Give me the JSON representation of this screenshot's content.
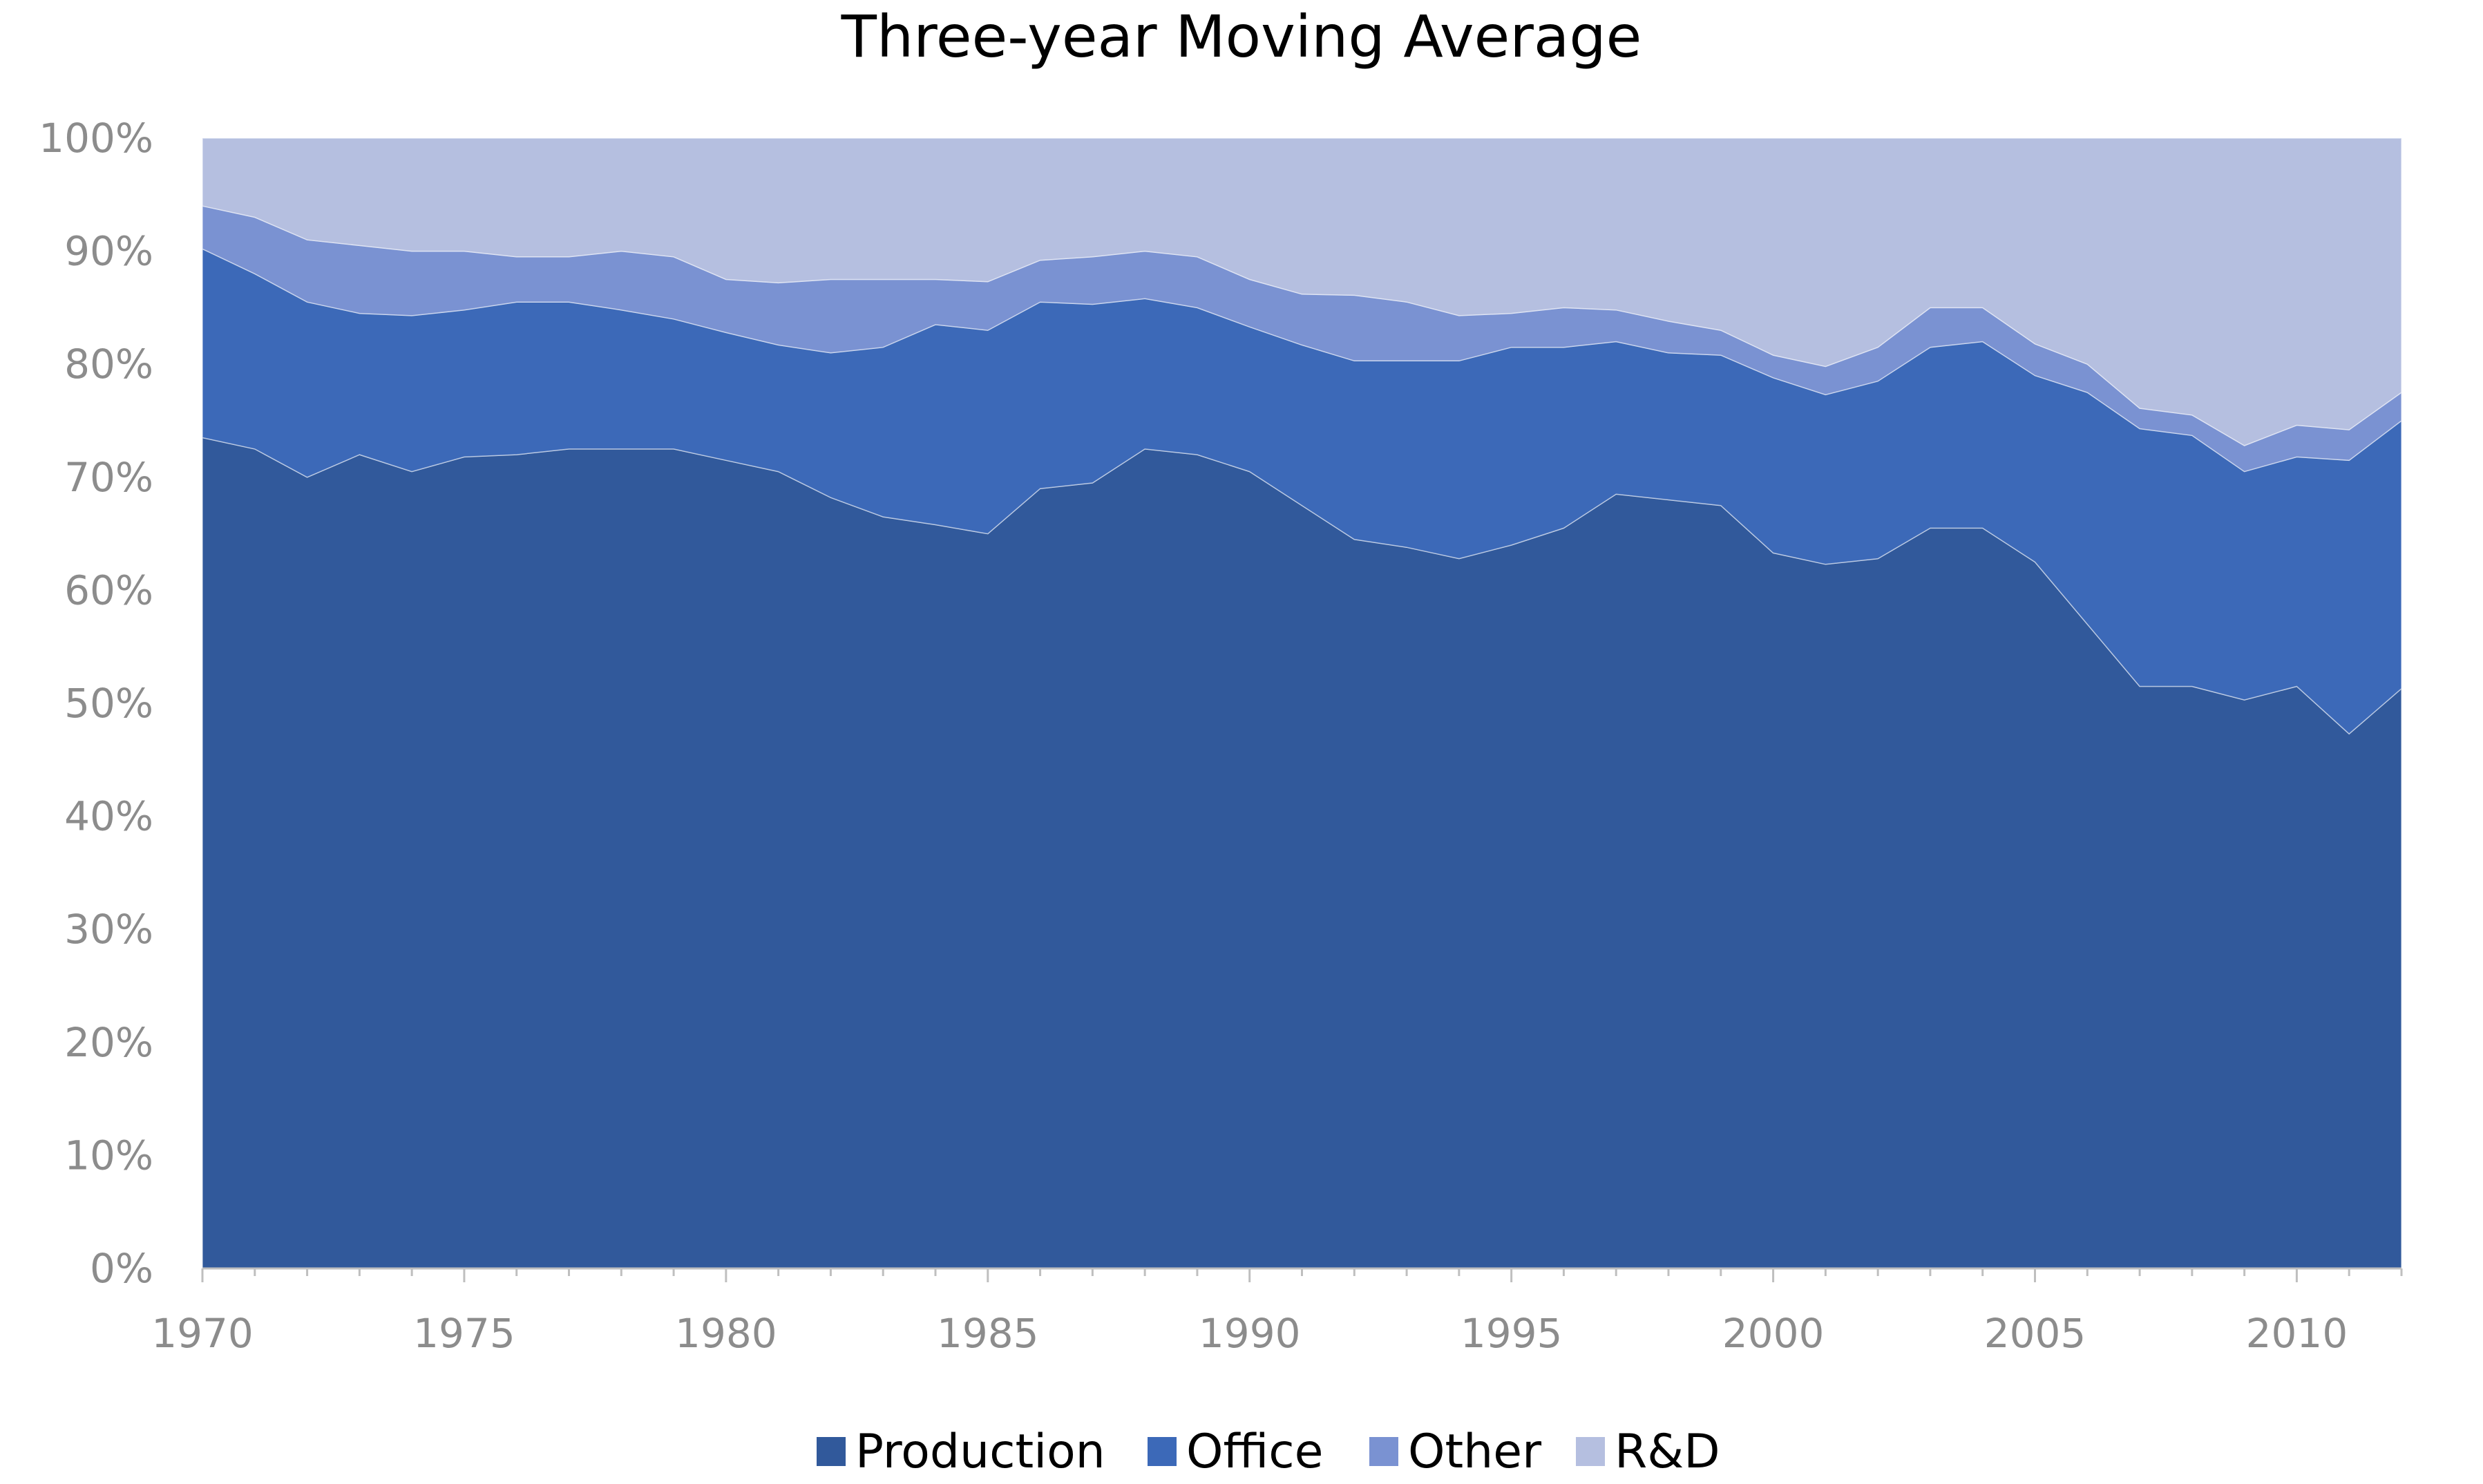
{
  "chart_data": {
    "type": "area",
    "stacked": true,
    "title": "Three-year Moving Average",
    "xlabel": "",
    "ylabel": "",
    "xlim": [
      1970,
      2012
    ],
    "ylim": [
      0,
      100
    ],
    "x_ticks": [
      "1970",
      "1975",
      "1980",
      "1985",
      "1990",
      "1995",
      "2000",
      "2005",
      "2010"
    ],
    "y_ticks": [
      "0%",
      "10%",
      "20%",
      "30%",
      "40%",
      "50%",
      "60%",
      "70%",
      "80%",
      "90%",
      "100%"
    ],
    "legend_position": "bottom",
    "grid": false,
    "x": [
      1970,
      1971,
      1972,
      1973,
      1974,
      1975,
      1976,
      1977,
      1978,
      1979,
      1980,
      1981,
      1982,
      1983,
      1984,
      1985,
      1986,
      1987,
      1988,
      1989,
      1990,
      1991,
      1992,
      1993,
      1994,
      1995,
      1996,
      1997,
      1998,
      1999,
      2000,
      2001,
      2002,
      2003,
      2004,
      2005,
      2006,
      2007,
      2008,
      2009,
      2010,
      2011,
      2012
    ],
    "series": [
      {
        "name": "Production",
        "color": "#31599b",
        "values": [
          73.5,
          72.5,
          70,
          72,
          70.5,
          71.8,
          72,
          72.5,
          72.5,
          72.5,
          71.5,
          70.5,
          68.2,
          66.5,
          65.8,
          65,
          69,
          69.5,
          72.5,
          72,
          70.5,
          67.5,
          64.5,
          63.8,
          62.8,
          64,
          65.5,
          68.5,
          68,
          67.5,
          63.3,
          62.3,
          62.8,
          65.5,
          65.5,
          62.5,
          57,
          51.5,
          51.5,
          50.3,
          51.5,
          47.3,
          51.3
        ]
      },
      {
        "name": "Office",
        "color": "#3c69b8",
        "values": [
          16.7,
          15.5,
          15.5,
          12.5,
          13.8,
          13,
          13.5,
          13,
          12.3,
          11.5,
          11.3,
          11.2,
          12.8,
          15,
          17.7,
          18,
          16.5,
          15.8,
          13.3,
          13,
          12.8,
          14.2,
          15.8,
          16.5,
          17.5,
          17.5,
          16,
          13.5,
          13,
          13.3,
          15.5,
          15,
          15.7,
          16,
          16.5,
          16.5,
          20.5,
          22.8,
          22.2,
          20.2,
          20.3,
          24.2,
          23.7
        ]
      },
      {
        "name": "Other",
        "color": "#7a92d2",
        "values": [
          3.8,
          5,
          5.5,
          6,
          5.7,
          5.2,
          4,
          4,
          5.2,
          5.5,
          4.7,
          5.5,
          6.5,
          6,
          4,
          4.3,
          3.7,
          4.2,
          4.2,
          4.5,
          4.2,
          4.5,
          5.8,
          5.2,
          4,
          3,
          3.5,
          2.8,
          2.8,
          2.2,
          2,
          2.5,
          3,
          3.5,
          3,
          2.8,
          2.5,
          1.8,
          1.8,
          2.3,
          2.8,
          2.7,
          2.5
        ]
      },
      {
        "name": "R&D",
        "color": "#b5bfe0",
        "values": [
          6,
          7,
          9,
          9.5,
          10,
          10,
          10.5,
          10.5,
          10,
          10.5,
          12.5,
          12.8,
          12.5,
          12.5,
          12.5,
          12.7,
          10.8,
          10.5,
          10,
          10.5,
          12.5,
          13.8,
          13.9,
          14.5,
          15.7,
          15.5,
          15,
          15.2,
          16.2,
          17,
          19.2,
          20.2,
          18.5,
          15,
          15,
          18.2,
          20,
          23.9,
          24.5,
          27.2,
          25.4,
          25.8,
          22.5
        ]
      }
    ]
  }
}
